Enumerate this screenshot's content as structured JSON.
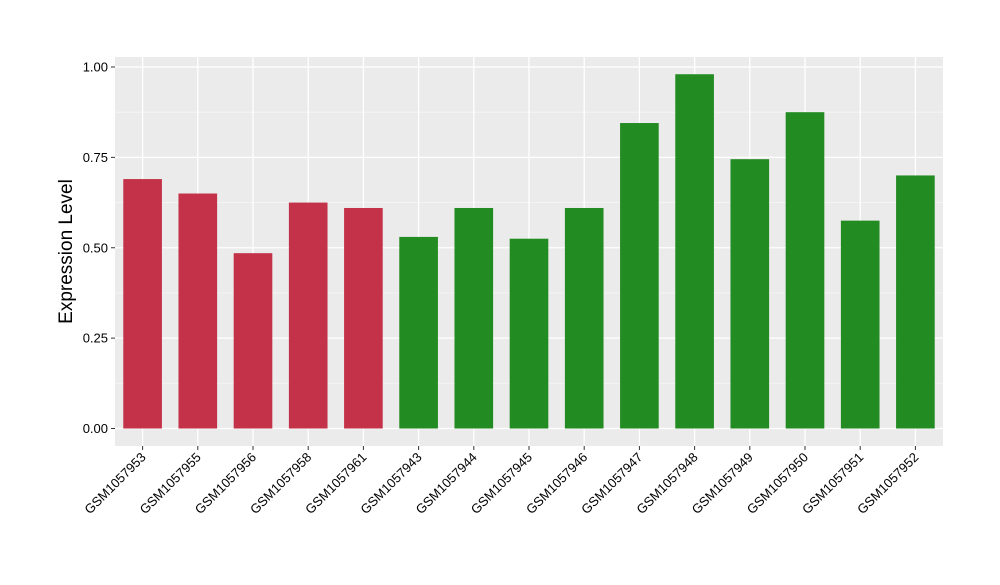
{
  "chart_data": {
    "type": "bar",
    "categories": [
      "GSM1057953",
      "GSM1057955",
      "GSM1057956",
      "GSM1057958",
      "GSM1057961",
      "GSM1057943",
      "GSM1057944",
      "GSM1057945",
      "GSM1057946",
      "GSM1057947",
      "GSM1057948",
      "GSM1057949",
      "GSM1057950",
      "GSM1057951",
      "GSM1057952"
    ],
    "values": [
      0.69,
      0.65,
      0.485,
      0.625,
      0.61,
      0.53,
      0.61,
      0.525,
      0.61,
      0.845,
      0.98,
      0.745,
      0.875,
      0.575,
      0.7
    ],
    "bar_colors": [
      "#c43249",
      "#c43249",
      "#c43249",
      "#c43249",
      "#c43249",
      "#228b22",
      "#228b22",
      "#228b22",
      "#228b22",
      "#228b22",
      "#228b22",
      "#228b22",
      "#228b22",
      "#228b22",
      "#228b22"
    ],
    "title": "",
    "xlabel": "",
    "ylabel": "Expression Level",
    "ylim": [
      0,
      1.0
    ],
    "yticks": [
      0.0,
      0.25,
      0.5,
      0.75,
      1.0
    ],
    "ytick_labels": [
      "0.00",
      "0.25",
      "0.50",
      "0.75",
      "1.00"
    ],
    "grid": true,
    "legend": "none",
    "colors": {
      "panel_background": "#ebebeb",
      "grid_major": "#ffffff",
      "grid_minor": "#f5f5f5",
      "text": "#000000"
    }
  }
}
